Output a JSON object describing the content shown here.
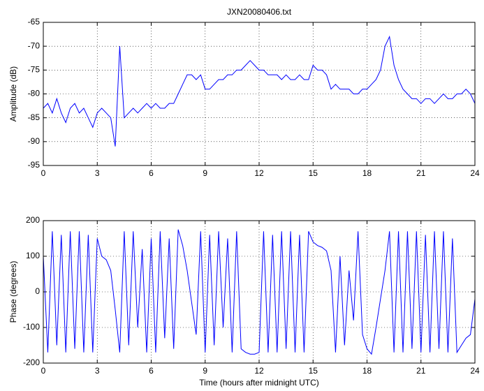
{
  "chart_data": [
    {
      "type": "line",
      "title": "JXN20080406.txt",
      "ylabel": "Amplitude (dB)",
      "x": [
        0,
        0.25,
        0.5,
        0.75,
        1,
        1.25,
        1.5,
        1.75,
        2,
        2.25,
        2.5,
        2.75,
        3,
        3.25,
        3.5,
        3.75,
        4,
        4.25,
        4.5,
        4.75,
        5,
        5.25,
        5.5,
        5.75,
        6,
        6.25,
        6.5,
        6.75,
        7,
        7.25,
        7.5,
        7.75,
        8,
        8.25,
        8.5,
        8.75,
        9,
        9.25,
        9.5,
        9.75,
        10,
        10.25,
        10.5,
        10.75,
        11,
        11.25,
        11.5,
        11.75,
        12,
        12.25,
        12.5,
        12.75,
        13,
        13.25,
        13.5,
        13.75,
        14,
        14.25,
        14.5,
        14.75,
        15,
        15.25,
        15.5,
        15.75,
        16,
        16.25,
        16.5,
        16.75,
        17,
        17.25,
        17.5,
        17.75,
        18,
        18.25,
        18.5,
        18.75,
        19,
        19.25,
        19.5,
        19.75,
        20,
        20.25,
        20.5,
        20.75,
        21,
        21.25,
        21.5,
        21.75,
        22,
        22.25,
        22.5,
        22.75,
        23,
        23.25,
        23.5,
        23.75,
        24
      ],
      "series": [
        {
          "color": "#0000ff",
          "values": [
            -83,
            -82,
            -84,
            -81,
            -84,
            -86,
            -83,
            -82,
            -84,
            -83,
            -85,
            -87,
            -84,
            -83,
            -84,
            -85,
            -91,
            -70,
            -85,
            -84,
            -83,
            -84,
            -83,
            -82,
            -83,
            -82,
            -83,
            -83,
            -82,
            -82,
            -80,
            -78,
            -76,
            -76,
            -77,
            -76,
            -79,
            -79,
            -78,
            -77,
            -77,
            -76,
            -76,
            -75,
            -75,
            -74,
            -73,
            -74,
            -75,
            -75,
            -76,
            -76,
            -76,
            -77,
            -76,
            -77,
            -77,
            -76,
            -77,
            -77,
            -74,
            -75,
            -75,
            -76,
            -79,
            -78,
            -79,
            -79,
            -79,
            -80,
            -80,
            -79,
            -79,
            -78,
            -77,
            -75,
            -70,
            -68,
            -74,
            -77,
            -79,
            -80,
            -81,
            -81,
            -82,
            -81,
            -81,
            -82,
            -81,
            -80,
            -81,
            -81,
            -80,
            -80,
            -79,
            -80,
            -82
          ]
        }
      ],
      "xlim": [
        0,
        24
      ],
      "xticks": [
        0,
        3,
        6,
        9,
        12,
        15,
        18,
        21,
        24
      ],
      "ylim": [
        -95,
        -65
      ],
      "yticks": [
        -95,
        -90,
        -85,
        -80,
        -75,
        -70,
        -65
      ],
      "grid": true
    },
    {
      "type": "line",
      "xlabel": "Time (hours after midnight UTC)",
      "ylabel": "Phase (degrees)",
      "x": [
        0,
        0.25,
        0.5,
        0.75,
        1,
        1.25,
        1.5,
        1.75,
        2,
        2.25,
        2.5,
        2.75,
        3,
        3.25,
        3.5,
        3.75,
        4,
        4.25,
        4.5,
        4.75,
        5,
        5.25,
        5.5,
        5.75,
        6,
        6.25,
        6.5,
        6.75,
        7,
        7.25,
        7.5,
        7.75,
        8,
        8.25,
        8.5,
        8.75,
        9,
        9.25,
        9.5,
        9.75,
        10,
        10.25,
        10.5,
        10.75,
        11,
        11.25,
        11.5,
        11.75,
        12,
        12.25,
        12.5,
        12.75,
        13,
        13.25,
        13.5,
        13.75,
        14,
        14.25,
        14.5,
        14.75,
        15,
        15.25,
        15.5,
        15.75,
        16,
        16.25,
        16.5,
        16.75,
        17,
        17.25,
        17.5,
        17.75,
        18,
        18.25,
        18.5,
        18.75,
        19,
        19.25,
        19.5,
        19.75,
        20,
        20.25,
        20.5,
        20.75,
        21,
        21.25,
        21.5,
        21.75,
        22,
        22.25,
        22.5,
        22.75,
        23,
        23.25,
        23.5,
        23.75,
        24
      ],
      "series": [
        {
          "color": "#0000ff",
          "values": [
            100,
            -170,
            170,
            -150,
            160,
            -170,
            170,
            -160,
            170,
            -170,
            160,
            -170,
            150,
            100,
            90,
            60,
            -50,
            -170,
            170,
            -150,
            170,
            -100,
            120,
            -170,
            150,
            -170,
            170,
            -130,
            150,
            -160,
            175,
            130,
            60,
            -30,
            -120,
            170,
            -170,
            160,
            -150,
            170,
            -100,
            150,
            -170,
            170,
            -160,
            -170,
            -175,
            -175,
            -170,
            170,
            -170,
            160,
            -170,
            170,
            -160,
            170,
            -170,
            160,
            -170,
            170,
            140,
            130,
            125,
            115,
            60,
            -170,
            100,
            -150,
            60,
            -80,
            170,
            -120,
            -160,
            -175,
            -100,
            -20,
            60,
            170,
            -170,
            170,
            -170,
            170,
            -160,
            170,
            -170,
            160,
            -170,
            170,
            -160,
            170,
            -170,
            150,
            -170,
            -150,
            -130,
            -120,
            -20
          ]
        }
      ],
      "xlim": [
        0,
        24
      ],
      "xticks": [
        0,
        3,
        6,
        9,
        12,
        15,
        18,
        21,
        24
      ],
      "ylim": [
        -200,
        200
      ],
      "yticks": [
        -200,
        -100,
        0,
        100,
        200
      ],
      "grid": true
    }
  ]
}
